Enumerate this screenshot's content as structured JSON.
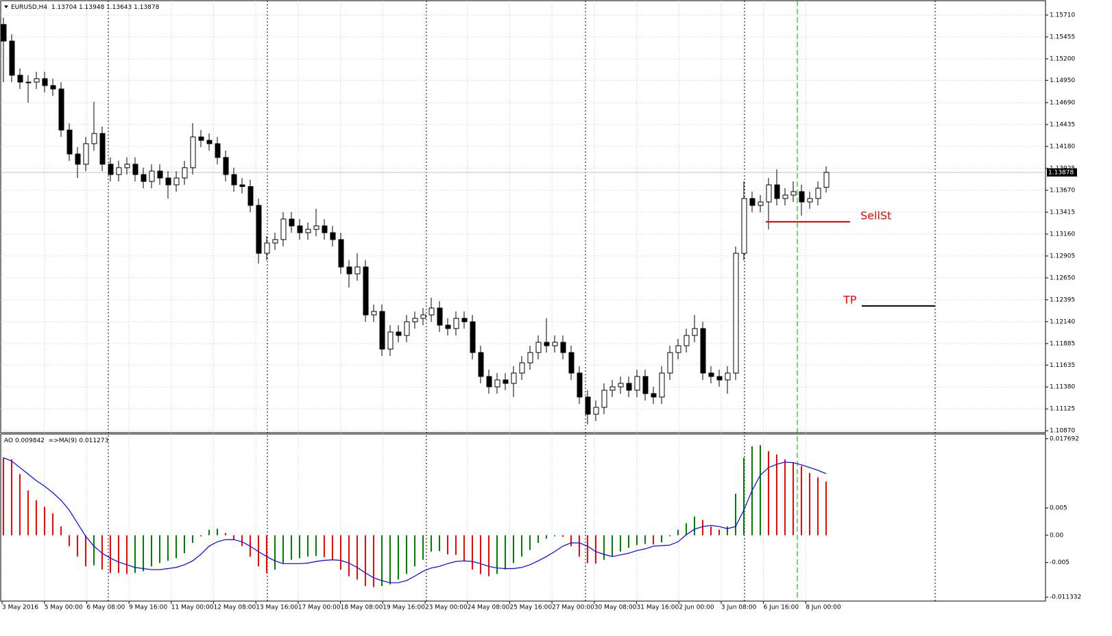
{
  "chart_data": [
    {
      "type": "candlestick",
      "title": "EURUSD,H4",
      "open": [
        1.156,
        1.15407,
        1.15009,
        1.14929,
        1.14929,
        1.14969,
        1.14889,
        1.14849,
        1.14371,
        1.14092,
        1.13973,
        1.14212,
        1.14331,
        1.13973,
        1.13853,
        1.13933,
        1.13973,
        1.13853,
        1.13773,
        1.13893,
        1.13813,
        1.13733,
        1.13813,
        1.13933,
        1.14291,
        1.14251,
        1.14212,
        1.14052,
        1.13853,
        1.13733,
        1.13713,
        1.13494,
        1.12936,
        1.13056,
        1.13096,
        1.13335,
        1.13255,
        1.13176,
        1.13215,
        1.13255,
        1.13176,
        1.13096,
        1.12777,
        1.12697,
        1.12777,
        1.12219,
        1.12259,
        1.11821,
        1.1202,
        1.1198,
        1.12139,
        1.12179,
        1.12219,
        1.12299,
        1.121,
        1.1206,
        1.12179,
        1.12139,
        1.11781,
        1.11502,
        1.11382,
        1.11462,
        1.11422,
        1.11542,
        1.11661,
        1.11781,
        1.119,
        1.1186,
        1.119,
        1.11781,
        1.11542,
        1.11263,
        1.11063,
        1.11143,
        1.11342,
        1.11382,
        1.11422,
        1.11342,
        1.11502,
        1.11303,
        1.11263,
        1.11542,
        1.11781,
        1.1186,
        1.1198,
        1.1206,
        1.11542,
        1.11502,
        1.11462,
        1.11542,
        1.12936,
        1.13574,
        1.13494,
        1.13534,
        1.13733,
        1.13574,
        1.13614,
        1.13654,
        1.13534,
        1.13574,
        1.13704
      ],
      "high": [
        1.1568,
        1.15487,
        1.15089,
        1.15009,
        1.15049,
        1.15049,
        1.14969,
        1.14929,
        1.14451,
        1.14172,
        1.14292,
        1.147,
        1.14411,
        1.14053,
        1.14013,
        1.14053,
        1.14053,
        1.13933,
        1.13973,
        1.13973,
        1.13893,
        1.13893,
        1.14013,
        1.14451,
        1.14371,
        1.14331,
        1.14292,
        1.14132,
        1.13933,
        1.13813,
        1.13793,
        1.13574,
        1.13136,
        1.13176,
        1.13415,
        1.13415,
        1.13335,
        1.13295,
        1.13455,
        1.13335,
        1.13256,
        1.13176,
        1.12857,
        1.12937,
        1.12857,
        1.12339,
        1.12339,
        1.121,
        1.121,
        1.12219,
        1.12259,
        1.12299,
        1.12419,
        1.12379,
        1.1218,
        1.12259,
        1.12259,
        1.12219,
        1.11861,
        1.11582,
        1.11542,
        1.11542,
        1.11622,
        1.11741,
        1.11861,
        1.1198,
        1.1218,
        1.1198,
        1.1198,
        1.11861,
        1.11622,
        1.11343,
        1.11223,
        1.11422,
        1.11462,
        1.11502,
        1.11502,
        1.11582,
        1.11582,
        1.11383,
        1.11622,
        1.11861,
        1.1194,
        1.1206,
        1.1222,
        1.1214,
        1.11622,
        1.11582,
        1.11622,
        1.13016,
        1.13774,
        1.13654,
        1.13614,
        1.13813,
        1.13913,
        1.13694,
        1.13774,
        1.13734,
        1.13654,
        1.13774,
        1.13948
      ],
      "low": [
        1.14929,
        1.14929,
        1.14849,
        1.1469,
        1.14849,
        1.14809,
        1.14769,
        1.14291,
        1.14012,
        1.13813,
        1.13893,
        1.14132,
        1.13893,
        1.13773,
        1.13773,
        1.13853,
        1.13773,
        1.13693,
        1.13693,
        1.13733,
        1.13573,
        1.13653,
        1.13733,
        1.13853,
        1.14171,
        1.14132,
        1.13972,
        1.13773,
        1.13653,
        1.13633,
        1.13414,
        1.12817,
        1.12856,
        1.12976,
        1.13016,
        1.13175,
        1.13096,
        1.13096,
        1.13135,
        1.13096,
        1.13016,
        1.12697,
        1.12537,
        1.12617,
        1.12139,
        1.12139,
        1.11741,
        1.11741,
        1.119,
        1.119,
        1.12059,
        1.12099,
        1.12139,
        1.1202,
        1.1198,
        1.1198,
        1.12059,
        1.11701,
        1.11422,
        1.11302,
        1.11302,
        1.11342,
        1.11262,
        1.11462,
        1.11581,
        1.11701,
        1.1178,
        1.1178,
        1.11701,
        1.11462,
        1.11183,
        1.10943,
        1.10983,
        1.11063,
        1.11262,
        1.11302,
        1.11262,
        1.11262,
        1.11223,
        1.11183,
        1.11183,
        1.11462,
        1.11701,
        1.1178,
        1.119,
        1.11462,
        1.11422,
        1.11382,
        1.11302,
        1.11462,
        1.12856,
        1.13414,
        1.13414,
        1.13214,
        1.13494,
        1.13494,
        1.13534,
        1.13374,
        1.13454,
        1.13494,
        1.13643
      ],
      "close": [
        1.15407,
        1.15009,
        1.14929,
        1.14929,
        1.14969,
        1.14889,
        1.14849,
        1.14371,
        1.14092,
        1.13973,
        1.14212,
        1.14331,
        1.13973,
        1.13853,
        1.13933,
        1.13973,
        1.13853,
        1.13773,
        1.13893,
        1.13813,
        1.13733,
        1.13813,
        1.13933,
        1.14291,
        1.14251,
        1.14212,
        1.14052,
        1.13853,
        1.13733,
        1.13713,
        1.13494,
        1.12936,
        1.13056,
        1.13096,
        1.13335,
        1.13255,
        1.13176,
        1.13215,
        1.13255,
        1.13176,
        1.13096,
        1.12777,
        1.12697,
        1.12777,
        1.12219,
        1.12259,
        1.11821,
        1.1202,
        1.1198,
        1.12139,
        1.12179,
        1.12219,
        1.12299,
        1.121,
        1.1206,
        1.12179,
        1.12139,
        1.11781,
        1.11502,
        1.11382,
        1.11462,
        1.11422,
        1.11542,
        1.11661,
        1.11781,
        1.119,
        1.1186,
        1.119,
        1.11781,
        1.11542,
        1.11263,
        1.11063,
        1.11143,
        1.11342,
        1.11382,
        1.11422,
        1.11342,
        1.11502,
        1.11303,
        1.11263,
        1.11542,
        1.11781,
        1.1186,
        1.1198,
        1.1206,
        1.11542,
        1.11502,
        1.11462,
        1.11542,
        1.12936,
        1.13574,
        1.13494,
        1.13534,
        1.13733,
        1.13574,
        1.13614,
        1.13654,
        1.13534,
        1.13574,
        1.13694,
        1.13878
      ],
      "up_color": "#ffffff",
      "down_color": "#000000",
      "ylim": [
        1.10848,
        1.15885
      ],
      "yticks": [
        {
          "value": 1.1571,
          "label": "1.15710"
        },
        1.15455,
        {
          "value": 1.152,
          "label": "1.15200"
        },
        {
          "value": 1.1495,
          "label": "1.14950"
        },
        {
          "value": 1.1469,
          "label": "1.14690"
        },
        1.14435,
        {
          "value": 1.1418,
          "label": "1.14180"
        },
        1.13925,
        {
          "value": 1.1367,
          "label": "1.13670"
        },
        1.13415,
        {
          "value": 1.1316,
          "label": "1.13160"
        },
        1.12905,
        {
          "value": 1.1265,
          "label": "1.12650"
        },
        1.12395,
        {
          "value": 1.1214,
          "label": "1.12140"
        },
        1.11885,
        1.11635,
        {
          "value": 1.1138,
          "label": "1.11380"
        },
        1.11125,
        {
          "value": 1.1087,
          "label": "1.10870"
        }
      ],
      "grid": true,
      "xtick_labels": [
        "3 May 2016",
        "5 May 00:00",
        "6 May 08:00",
        "9 May 16:00",
        "11 May 00:00",
        "12 May 08:00",
        "13 May 16:00",
        "17 May 00:00",
        "18 May 08:00",
        "19 May 16:00",
        "23 May 00:00",
        "24 May 08:00",
        "25 May 16:00",
        "27 May 00:00",
        "30 May 08:00",
        "31 May 16:00",
        "2 Jun 00:00",
        "3 Jun 08:00",
        "6 Jun 16:00",
        "8 Jun 00:00"
      ],
      "annotations": [
        {
          "label": "SellSt",
          "value": 1.13303,
          "color": "#ff0000"
        },
        {
          "label": "TP",
          "value": 1.12323,
          "color": "#000000"
        }
      ]
    },
    {
      "type": "bar",
      "title": "AO",
      "values": [
        0.0142,
        0.0139,
        0.0112,
        0.0082,
        0.0064,
        0.0052,
        0.004,
        0.0016,
        -0.002,
        -0.0039,
        -0.0057,
        -0.0055,
        -0.0063,
        -0.0069,
        -0.0069,
        -0.0071,
        -0.0069,
        -0.0066,
        -0.0057,
        -0.0051,
        -0.0047,
        -0.0042,
        -0.0033,
        -0.0014,
        -0.0002,
        0.001,
        0.0012,
        0.0004,
        -0.0008,
        -0.002,
        -0.0039,
        -0.0057,
        -0.0069,
        -0.0063,
        -0.0051,
        -0.0045,
        -0.0042,
        -0.0039,
        -0.0038,
        -0.004,
        -0.0045,
        -0.0063,
        -0.0075,
        -0.0081,
        -0.0093,
        -0.0095,
        -0.0093,
        -0.009,
        -0.0081,
        -0.0071,
        -0.0057,
        -0.0045,
        -0.003,
        -0.0029,
        -0.0035,
        -0.0036,
        -0.0047,
        -0.0063,
        -0.0071,
        -0.0075,
        -0.0071,
        -0.0063,
        -0.0051,
        -0.0039,
        -0.0027,
        -0.0014,
        -0.0006,
        -0.0002,
        -0.0003,
        -0.002,
        -0.0039,
        -0.0051,
        -0.0052,
        -0.0045,
        -0.0039,
        -0.003,
        -0.0023,
        -0.0018,
        -0.0016,
        -0.0017,
        -0.0013,
        -0.0002,
        0.001,
        0.0022,
        0.0034,
        0.0028,
        0.0016,
        0.001,
        0.0016,
        0.0076,
        0.0142,
        0.0163,
        0.0165,
        0.0154,
        0.0148,
        0.0139,
        0.0134,
        0.0127,
        0.0114,
        0.0106,
        0.009842
      ],
      "up_color": "#008000",
      "down_color": "#ff0000",
      "ma": {
        "name": "=>MA(9)",
        "color": "#0000ff",
        "values": [
          0.0142,
          0.0136,
          0.0124,
          0.0112,
          0.01,
          0.009,
          0.0078,
          0.0064,
          0.0046,
          0.0022,
          -0.0002,
          -0.002,
          -0.0033,
          -0.0042,
          -0.0049,
          -0.0054,
          -0.0059,
          -0.0061,
          -0.0063,
          -0.0063,
          -0.0061,
          -0.0059,
          -0.0054,
          -0.0047,
          -0.0035,
          -0.002,
          -0.0012,
          -0.0008,
          -0.0008,
          -0.0012,
          -0.002,
          -0.003,
          -0.0039,
          -0.0047,
          -0.0052,
          -0.0052,
          -0.0052,
          -0.0051,
          -0.0048,
          -0.0046,
          -0.0045,
          -0.0046,
          -0.0051,
          -0.0059,
          -0.0069,
          -0.0078,
          -0.0083,
          -0.0087,
          -0.0087,
          -0.0083,
          -0.0075,
          -0.0066,
          -0.006,
          -0.0057,
          -0.0052,
          -0.0048,
          -0.0047,
          -0.0048,
          -0.0052,
          -0.0057,
          -0.006,
          -0.0061,
          -0.0061,
          -0.0059,
          -0.0054,
          -0.0047,
          -0.0039,
          -0.003,
          -0.002,
          -0.0014,
          -0.0014,
          -0.002,
          -0.003,
          -0.0035,
          -0.0039,
          -0.0036,
          -0.0033,
          -0.0028,
          -0.0025,
          -0.002,
          -0.0019,
          -0.0018,
          -0.0012,
          0.0001,
          0.0011,
          0.0016,
          0.0018,
          0.0016,
          0.0012,
          0.0016,
          0.0046,
          0.0082,
          0.011,
          0.0124,
          0.013,
          0.0134,
          0.0133,
          0.0129,
          0.0124,
          0.0119,
          0.011273
        ]
      },
      "ylim": [
        -0.01206,
        0.01854
      ],
      "yticks": [
        0.017692,
        0.005,
        {
          "value": 0,
          "label": "0.00"
        },
        -0.005,
        -0.011332
      ]
    }
  ]
}
